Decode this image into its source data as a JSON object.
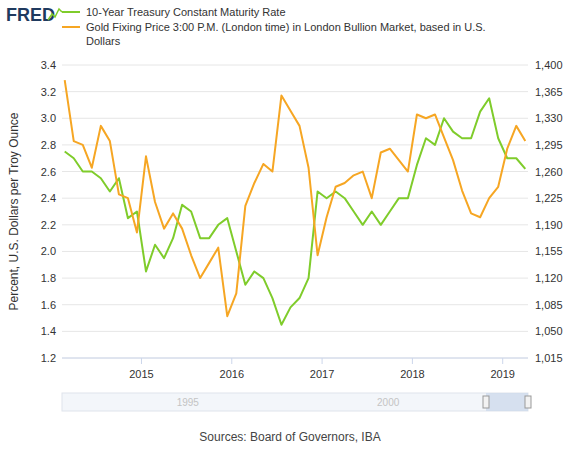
{
  "chart_data": {
    "type": "line",
    "logo": "FRED",
    "y_label": "Percent, U.S. Dollars per Troy Ounce",
    "source": "Sources: Board of Governors, IBA",
    "annotations": [
      "1995",
      "2000"
    ],
    "legend": "top",
    "grid": true,
    "xlim": [
      2014.12,
      2019.28
    ],
    "xticks": [
      2015,
      2016,
      2017,
      2018,
      2019
    ],
    "ylim": [
      1.2,
      3.4
    ],
    "yticks": [
      1.2,
      1.4,
      1.6,
      1.8,
      {
        "value": 2,
        "label": "2.0"
      },
      2.2,
      2.4,
      2.6,
      2.8,
      {
        "value": 3,
        "label": "3.0"
      },
      3.2,
      3.4
    ],
    "y2lim": [
      1015,
      1400
    ],
    "y2ticks": [
      {
        "value": 1015,
        "label": "1,015"
      },
      {
        "value": 1050,
        "label": "1,050"
      },
      {
        "value": 1085,
        "label": "1,085"
      },
      {
        "value": 1120,
        "label": "1,120"
      },
      {
        "value": 1155,
        "label": "1,155"
      },
      {
        "value": 1190,
        "label": "1,190"
      },
      {
        "value": 1225,
        "label": "1,225"
      },
      {
        "value": 1260,
        "label": "1,260"
      },
      {
        "value": 1295,
        "label": "1,295"
      },
      {
        "value": 1330,
        "label": "1,330"
      },
      {
        "value": 1365,
        "label": "1,365"
      },
      {
        "value": 1400,
        "label": "1,400"
      }
    ],
    "x": [
      2014.15,
      2014.25,
      2014.35,
      2014.45,
      2014.55,
      2014.65,
      2014.75,
      2014.85,
      2014.95,
      2015.05,
      2015.15,
      2015.25,
      2015.35,
      2015.45,
      2015.55,
      2015.65,
      2015.75,
      2015.85,
      2015.95,
      2016.05,
      2016.15,
      2016.25,
      2016.35,
      2016.45,
      2016.55,
      2016.65,
      2016.75,
      2016.85,
      2016.95,
      2017.05,
      2017.15,
      2017.25,
      2017.35,
      2017.45,
      2017.55,
      2017.65,
      2017.75,
      2017.85,
      2017.95,
      2018.05,
      2018.15,
      2018.25,
      2018.35,
      2018.45,
      2018.55,
      2018.65,
      2018.75,
      2018.85,
      2018.95,
      2019.05,
      2019.15,
      2019.25
    ],
    "series": [
      {
        "name": "10-Year Treasury Constant Maturity Rate",
        "color": "#7fcc2b",
        "values": [
          2.75,
          2.7,
          2.6,
          2.6,
          2.55,
          2.45,
          2.55,
          2.25,
          2.3,
          1.85,
          2.05,
          1.95,
          2.1,
          2.35,
          2.3,
          2.1,
          2.1,
          2.2,
          2.25,
          2.0,
          1.75,
          1.85,
          1.8,
          1.65,
          1.45,
          1.58,
          1.65,
          1.8,
          2.45,
          2.4,
          2.45,
          2.4,
          2.3,
          2.2,
          2.3,
          2.2,
          2.3,
          2.4,
          2.4,
          2.65,
          2.85,
          2.8,
          3.0,
          2.9,
          2.85,
          2.85,
          3.05,
          3.15,
          2.85,
          2.7,
          2.7,
          2.62
        ]
      },
      {
        "name": "Gold Fixing Price 3:00 P.M. (London time) in London Bullion Market, based in U.S. Dollars",
        "color": "#f6a623",
        "axis": "y2",
        "values": [
          1380,
          1300,
          1295,
          1265,
          1320,
          1300,
          1230,
          1225,
          1180,
          1280,
          1220,
          1185,
          1205,
          1185,
          1150,
          1120,
          1140,
          1160,
          1070,
          1100,
          1215,
          1245,
          1270,
          1260,
          1360,
          1340,
          1320,
          1265,
          1150,
          1200,
          1240,
          1245,
          1255,
          1260,
          1225,
          1285,
          1290,
          1275,
          1260,
          1335,
          1330,
          1335,
          1305,
          1275,
          1235,
          1205,
          1200,
          1225,
          1240,
          1290,
          1320,
          1300
        ]
      }
    ]
  }
}
